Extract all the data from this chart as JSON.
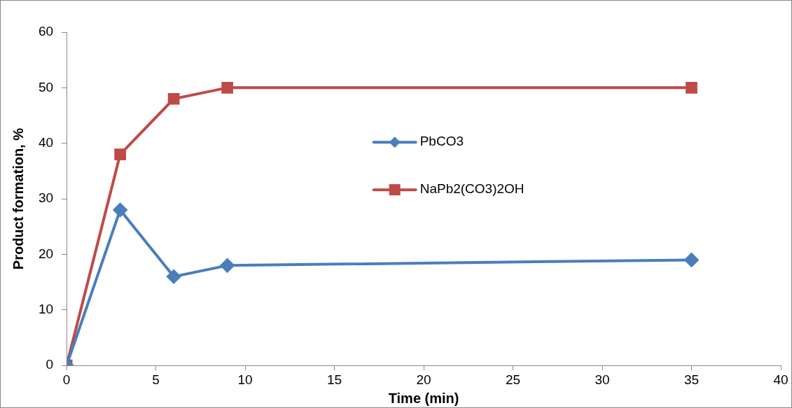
{
  "chart_data": {
    "type": "line",
    "xlabel": "Time (min)",
    "ylabel": "Product formation, %",
    "x": [
      0,
      3,
      6,
      9,
      35
    ],
    "series": [
      {
        "name": "PbCO3",
        "color": "#4a7ebb",
        "marker": "diamond",
        "values": [
          0,
          28,
          16,
          18,
          19
        ]
      },
      {
        "name": "NaPb2(CO3)2OH",
        "color": "#be4b48",
        "marker": "square",
        "values": [
          0,
          38,
          48,
          50,
          50
        ]
      }
    ],
    "xlim": [
      0,
      40
    ],
    "xticks": [
      0,
      5,
      10,
      15,
      20,
      25,
      30,
      35,
      40
    ],
    "ylim": [
      0,
      60
    ],
    "yticks": [
      0,
      10,
      20,
      30,
      40,
      50,
      60
    ],
    "grid": false,
    "legend": "center",
    "line_style": "solid"
  }
}
